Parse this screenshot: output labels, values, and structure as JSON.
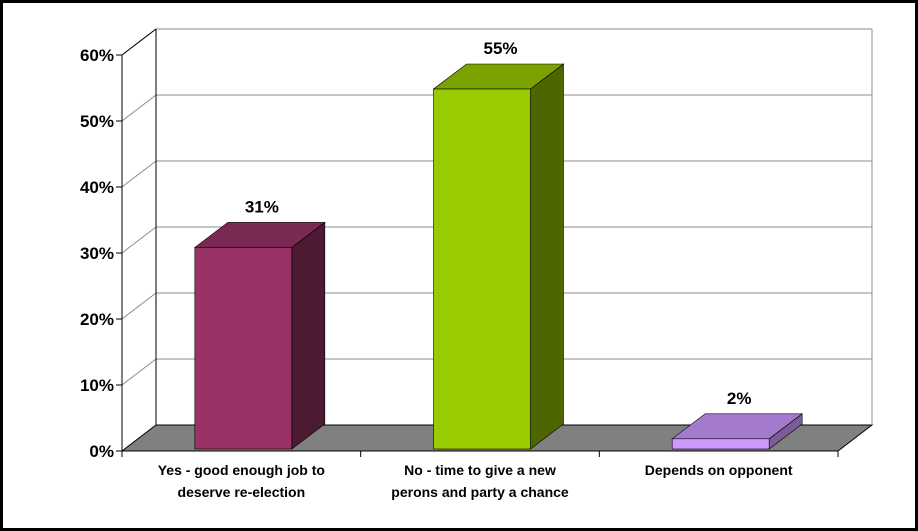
{
  "chart_data": {
    "type": "bar",
    "style": "3d-column",
    "categories": [
      [
        "Yes - good enough job to",
        "deserve re-election"
      ],
      [
        "No - time to give a new",
        "perons and party a chance"
      ],
      [
        "Depends on opponent"
      ]
    ],
    "values": [
      31,
      55,
      2
    ],
    "data_labels": [
      "31%",
      "55%",
      "2%"
    ],
    "colors": [
      {
        "front": "#993366",
        "top": "#7a2952",
        "side": "#4d1a33"
      },
      {
        "front": "#99cc00",
        "top": "#7aa300",
        "side": "#4d6600"
      },
      {
        "front": "#cc99ff",
        "top": "#a37acc",
        "side": "#7a5c99"
      }
    ],
    "ylim": [
      0,
      60
    ],
    "yticks": [
      "0%",
      "10%",
      "20%",
      "30%",
      "40%",
      "50%",
      "60%"
    ],
    "grid": true,
    "title": "",
    "xlabel": "",
    "ylabel": ""
  }
}
